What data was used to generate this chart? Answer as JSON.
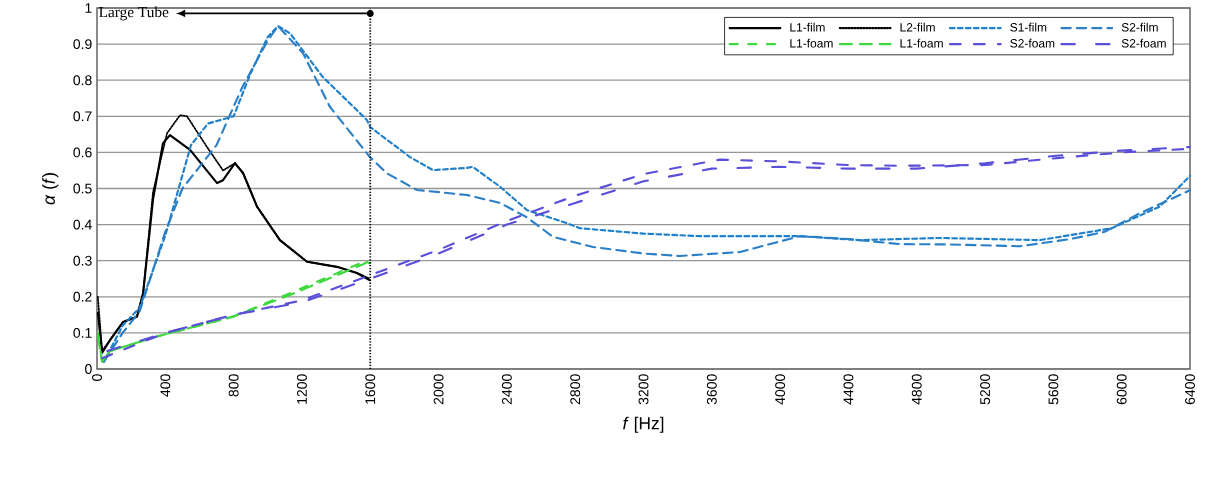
{
  "chart_data": {
    "type": "line",
    "xlabel": "*f* [Hz]",
    "ylabel": "*α* (*f*)",
    "xlim": [
      0,
      6400
    ],
    "xticks": [
      0,
      400,
      800,
      1200,
      1600,
      2000,
      2400,
      2800,
      3200,
      3600,
      4000,
      4400,
      4800,
      5200,
      5600,
      6000,
      6400
    ],
    "ylim": [
      0,
      1
    ],
    "yticks": [
      0,
      0.1,
      0.2,
      0.3,
      0.4,
      0.5,
      0.6,
      0.7,
      0.8,
      0.9,
      1
    ],
    "grid": "y",
    "legend": "top right",
    "marker": "none",
    "annotations": [
      "Large Tube"
    ],
    "ref_lines": [
      {
        "axis": "x",
        "value": 1600,
        "color": "#000000",
        "line_style": "dotted"
      }
    ],
    "series": [
      {
        "name": "L1-film",
        "color": "#000000",
        "line_style": "solid",
        "x": [
          5,
          30,
          76,
          152,
          234,
          270,
          328,
          386,
          427,
          545,
          703,
          738,
          808,
          855,
          937,
          1071,
          1230,
          1405,
          1522,
          1598
        ],
        "values": [
          0.155,
          0.045,
          0.08,
          0.13,
          0.145,
          0.21,
          0.47,
          0.625,
          0.648,
          0.607,
          0.515,
          0.523,
          0.57,
          0.543,
          0.45,
          0.357,
          0.297,
          0.283,
          0.266,
          0.246
        ]
      },
      {
        "name": "L2-film",
        "color": "#000000",
        "line_style": "dotted",
        "x": [
          5,
          30,
          76,
          152,
          234,
          270,
          328,
          410,
          486,
          527,
          644,
          738,
          808,
          855,
          937,
          1071,
          1230,
          1405,
          1522,
          1598
        ],
        "values": [
          0.2,
          0.05,
          0.08,
          0.13,
          0.145,
          0.21,
          0.49,
          0.653,
          0.703,
          0.7,
          0.615,
          0.55,
          0.57,
          0.543,
          0.45,
          0.357,
          0.297,
          0.283,
          0.266,
          0.25
        ]
      },
      {
        "name": "S1-film",
        "color": "#1f7fc8",
        "line_style": "dashed",
        "x": [
          40,
          150,
          250,
          400,
          550,
          650,
          800,
          900,
          1000,
          1060,
          1130,
          1320,
          1580,
          1600,
          1833,
          1967,
          2166,
          2200,
          2360,
          2518,
          2751,
          2827,
          3200,
          3530,
          4116,
          4467,
          4935,
          5520,
          5943,
          6223,
          6400
        ],
        "values": [
          0.02,
          0.12,
          0.17,
          0.37,
          0.62,
          0.68,
          0.7,
          0.82,
          0.92,
          0.95,
          0.93,
          0.81,
          0.69,
          0.67,
          0.587,
          0.551,
          0.557,
          0.56,
          0.505,
          0.44,
          0.404,
          0.39,
          0.375,
          0.368,
          0.368,
          0.357,
          0.363,
          0.357,
          0.39,
          0.45,
          0.535
        ]
      },
      {
        "name": "S2-film",
        "color": "#2a7fc6",
        "line_style": "dashed",
        "x": [
          40,
          150,
          250,
          400,
          500,
          600,
          700,
          850,
          1000,
          1060,
          1206,
          1364,
          1598,
          1698,
          1873,
          2166,
          2360,
          2518,
          2670,
          2904,
          3200,
          3413,
          3765,
          4116,
          4400,
          4700,
          5000,
          5404,
          5700,
          5900,
          6100,
          6400
        ],
        "values": [
          0.02,
          0.1,
          0.16,
          0.38,
          0.5,
          0.56,
          0.62,
          0.78,
          0.91,
          0.95,
          0.875,
          0.726,
          0.587,
          0.542,
          0.496,
          0.482,
          0.46,
          0.42,
          0.366,
          0.338,
          0.32,
          0.313,
          0.324,
          0.368,
          0.36,
          0.346,
          0.345,
          0.34,
          0.36,
          0.38,
          0.43,
          0.495
        ]
      },
      {
        "name": "L1-foam",
        "color": "#3fd93f",
        "line_style": "dashed",
        "x": [
          5,
          30,
          76,
          351,
          796,
          1130,
          1557,
          1598
        ],
        "values": [
          0.1,
          0.02,
          0.05,
          0.09,
          0.145,
          0.21,
          0.296,
          0.293
        ]
      },
      {
        "name": "L1-foam",
        "color": "#3fd93f",
        "line_style": "dashed",
        "x": [
          5,
          30,
          76,
          351,
          796,
          1130,
          1557,
          1598
        ],
        "values": [
          0.09,
          0.02,
          0.05,
          0.09,
          0.145,
          0.205,
          0.29,
          0.3
        ]
      },
      {
        "name": "S2-foam",
        "color": "#5a4fd8",
        "line_style": "dashed",
        "x": [
          30,
          400,
          800,
          1200,
          1600,
          2000,
          2400,
          2800,
          3200,
          3647,
          4000,
          4400,
          4701,
          5200,
          5638,
          6000,
          6400
        ],
        "values": [
          0.03,
          0.1,
          0.15,
          0.19,
          0.26,
          0.33,
          0.41,
          0.48,
          0.54,
          0.58,
          0.575,
          0.565,
          0.563,
          0.565,
          0.585,
          0.6,
          0.61
        ]
      },
      {
        "name": "S2-foam",
        "color": "#5a4fd8",
        "line_style": "dashed",
        "x": [
          60,
          400,
          800,
          1200,
          1600,
          2000,
          2400,
          2800,
          3200,
          3600,
          4000,
          4400,
          4800,
          5200,
          5600,
          6000,
          6400
        ],
        "values": [
          0.05,
          0.1,
          0.15,
          0.185,
          0.25,
          0.32,
          0.4,
          0.46,
          0.52,
          0.555,
          0.56,
          0.555,
          0.555,
          0.57,
          0.59,
          0.605,
          0.615
        ]
      }
    ]
  }
}
